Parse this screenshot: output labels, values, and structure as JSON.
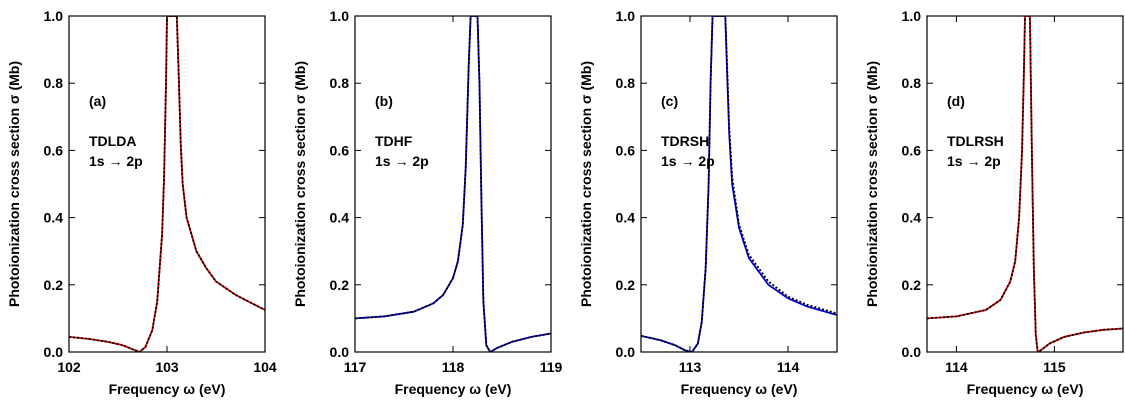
{
  "chart_data": [
    {
      "type": "line",
      "panel_label": "(a)",
      "annotation_line1": "TDLDA",
      "annotation_line2": "1s → 2p",
      "xlabel": "Frequency ω (eV)",
      "ylabel": "Photoionization cross section σ (Mb)",
      "xlim": [
        102,
        104
      ],
      "ylim": [
        0,
        1.0
      ],
      "xticks": [
        "102",
        "103",
        "104"
      ],
      "yticks": [
        "0.0",
        "0.2",
        "0.4",
        "0.6",
        "0.8",
        "1.0"
      ],
      "grid": false,
      "series": [
        {
          "color": "#d40000",
          "style": "solid",
          "x": [
            102.0,
            102.2,
            102.4,
            102.55,
            102.65,
            102.72,
            102.78,
            102.85,
            102.9,
            102.95,
            102.97,
            102.99,
            103.0,
            103.05,
            103.1,
            103.12,
            103.14,
            103.16,
            103.2,
            103.3,
            103.4,
            103.5,
            103.7,
            104.0
          ],
          "y": [
            0.045,
            0.039,
            0.03,
            0.02,
            0.008,
            0.0,
            0.015,
            0.065,
            0.15,
            0.35,
            0.52,
            0.8,
            1.0,
            1.0,
            1.0,
            0.82,
            0.62,
            0.5,
            0.4,
            0.3,
            0.25,
            0.21,
            0.17,
            0.125
          ]
        },
        {
          "color": "#000000",
          "style": "dotted",
          "x": [
            102.0,
            102.2,
            102.4,
            102.55,
            102.65,
            102.72,
            102.78,
            102.85,
            102.9,
            102.95,
            102.97,
            102.99,
            103.0,
            103.05,
            103.1,
            103.12,
            103.14,
            103.16,
            103.2,
            103.3,
            103.4,
            103.5,
            103.7,
            104.0
          ],
          "y": [
            0.045,
            0.039,
            0.03,
            0.02,
            0.008,
            0.0,
            0.015,
            0.065,
            0.15,
            0.35,
            0.52,
            0.8,
            1.0,
            1.0,
            1.0,
            0.82,
            0.62,
            0.5,
            0.4,
            0.3,
            0.25,
            0.21,
            0.17,
            0.125
          ]
        }
      ]
    },
    {
      "type": "line",
      "panel_label": "(b)",
      "annotation_line1": "TDHF",
      "annotation_line2": "1s → 2p",
      "xlabel": "Frequency ω (eV)",
      "ylabel": "Photoionization cross section σ (Mb)",
      "xlim": [
        117,
        119
      ],
      "ylim": [
        0,
        1.0
      ],
      "xticks": [
        "117",
        "118",
        "119"
      ],
      "yticks": [
        "0.0",
        "0.2",
        "0.4",
        "0.6",
        "0.8",
        "1.0"
      ],
      "grid": false,
      "series": [
        {
          "color": "#0000cc",
          "style": "solid",
          "x": [
            117.0,
            117.3,
            117.6,
            117.8,
            117.9,
            118.0,
            118.05,
            118.1,
            118.13,
            118.16,
            118.18,
            118.2,
            118.25,
            118.27,
            118.29,
            118.31,
            118.34,
            118.38,
            118.45,
            118.6,
            118.8,
            119.0
          ],
          "y": [
            0.1,
            0.106,
            0.12,
            0.145,
            0.17,
            0.22,
            0.27,
            0.38,
            0.55,
            0.85,
            1.0,
            1.0,
            1.0,
            0.8,
            0.45,
            0.15,
            0.02,
            0.0,
            0.012,
            0.03,
            0.045,
            0.055
          ]
        },
        {
          "color": "#000000",
          "style": "dotted",
          "x": [
            117.0,
            117.3,
            117.6,
            117.8,
            117.9,
            118.0,
            118.05,
            118.1,
            118.13,
            118.16,
            118.18,
            118.2,
            118.25,
            118.27,
            118.29,
            118.31,
            118.34,
            118.38,
            118.45,
            118.6,
            118.8,
            119.0
          ],
          "y": [
            0.1,
            0.106,
            0.12,
            0.145,
            0.17,
            0.22,
            0.27,
            0.38,
            0.55,
            0.85,
            1.0,
            1.0,
            1.0,
            0.8,
            0.45,
            0.15,
            0.02,
            0.0,
            0.012,
            0.03,
            0.045,
            0.055
          ]
        }
      ]
    },
    {
      "type": "line",
      "panel_label": "(c)",
      "annotation_line1": "TDRSH",
      "annotation_line2": "1s → 2p",
      "xlabel": "Frequency ω (eV)",
      "ylabel": "Photoionization cross section σ (Mb)",
      "xlim": [
        112.5,
        114.5
      ],
      "ylim": [
        0,
        1.0
      ],
      "xticks": [
        "113",
        "114"
      ],
      "yticks": [
        "0.0",
        "0.2",
        "0.4",
        "0.6",
        "0.8",
        "1.0"
      ],
      "grid": false,
      "series": [
        {
          "color": "#0000cc",
          "style": "solid",
          "x": [
            112.5,
            112.7,
            112.85,
            112.95,
            113.02,
            113.08,
            113.12,
            113.16,
            113.19,
            113.21,
            113.23,
            113.25,
            113.3,
            113.36,
            113.38,
            113.4,
            113.43,
            113.5,
            113.6,
            113.8,
            114.0,
            114.2,
            114.5
          ],
          "y": [
            0.048,
            0.035,
            0.02,
            0.005,
            0.0,
            0.025,
            0.09,
            0.25,
            0.5,
            0.8,
            1.0,
            1.0,
            1.0,
            1.0,
            0.82,
            0.65,
            0.5,
            0.37,
            0.28,
            0.2,
            0.16,
            0.135,
            0.11
          ]
        },
        {
          "color": "#000000",
          "style": "dotted",
          "x": [
            112.5,
            112.7,
            112.85,
            112.95,
            113.02,
            113.08,
            113.12,
            113.16,
            113.19,
            113.21,
            113.23,
            113.25,
            113.3,
            113.36,
            113.38,
            113.4,
            113.43,
            113.5,
            113.6,
            113.8,
            114.0,
            114.2,
            114.5
          ],
          "y": [
            0.048,
            0.035,
            0.02,
            0.005,
            0.0,
            0.025,
            0.09,
            0.25,
            0.5,
            0.8,
            1.0,
            1.0,
            1.0,
            1.0,
            0.84,
            0.67,
            0.52,
            0.38,
            0.29,
            0.21,
            0.165,
            0.14,
            0.115
          ]
        }
      ]
    },
    {
      "type": "line",
      "panel_label": "(d)",
      "annotation_line1": "TDLRSH",
      "annotation_line2": "1s → 2p",
      "xlabel": "Frequency ω (eV)",
      "ylabel": "Photoionization cross section σ (Mb)",
      "xlim": [
        113.7,
        115.7
      ],
      "ylim": [
        0,
        1.0
      ],
      "xticks": [
        "114",
        "115"
      ],
      "yticks": [
        "0.0",
        "0.2",
        "0.4",
        "0.6",
        "0.8",
        "1.0"
      ],
      "grid": false,
      "series": [
        {
          "color": "#d40000",
          "style": "solid",
          "x": [
            113.7,
            114.0,
            114.3,
            114.45,
            114.55,
            114.6,
            114.64,
            114.67,
            114.69,
            114.7,
            114.75,
            114.77,
            114.79,
            114.81,
            114.83,
            114.86,
            114.95,
            115.1,
            115.3,
            115.5,
            115.7
          ],
          "y": [
            0.1,
            0.106,
            0.125,
            0.155,
            0.21,
            0.27,
            0.4,
            0.6,
            0.85,
            1.0,
            1.0,
            0.6,
            0.25,
            0.05,
            0.0,
            0.005,
            0.025,
            0.045,
            0.058,
            0.066,
            0.07
          ]
        },
        {
          "color": "#000000",
          "style": "dotted",
          "x": [
            113.7,
            114.0,
            114.3,
            114.45,
            114.55,
            114.6,
            114.64,
            114.67,
            114.69,
            114.7,
            114.75,
            114.77,
            114.79,
            114.81,
            114.83,
            114.86,
            114.95,
            115.1,
            115.3,
            115.5,
            115.7
          ],
          "y": [
            0.1,
            0.106,
            0.125,
            0.155,
            0.21,
            0.27,
            0.4,
            0.6,
            0.85,
            1.0,
            1.0,
            0.6,
            0.25,
            0.05,
            0.0,
            0.005,
            0.025,
            0.045,
            0.058,
            0.066,
            0.07
          ]
        }
      ]
    }
  ]
}
